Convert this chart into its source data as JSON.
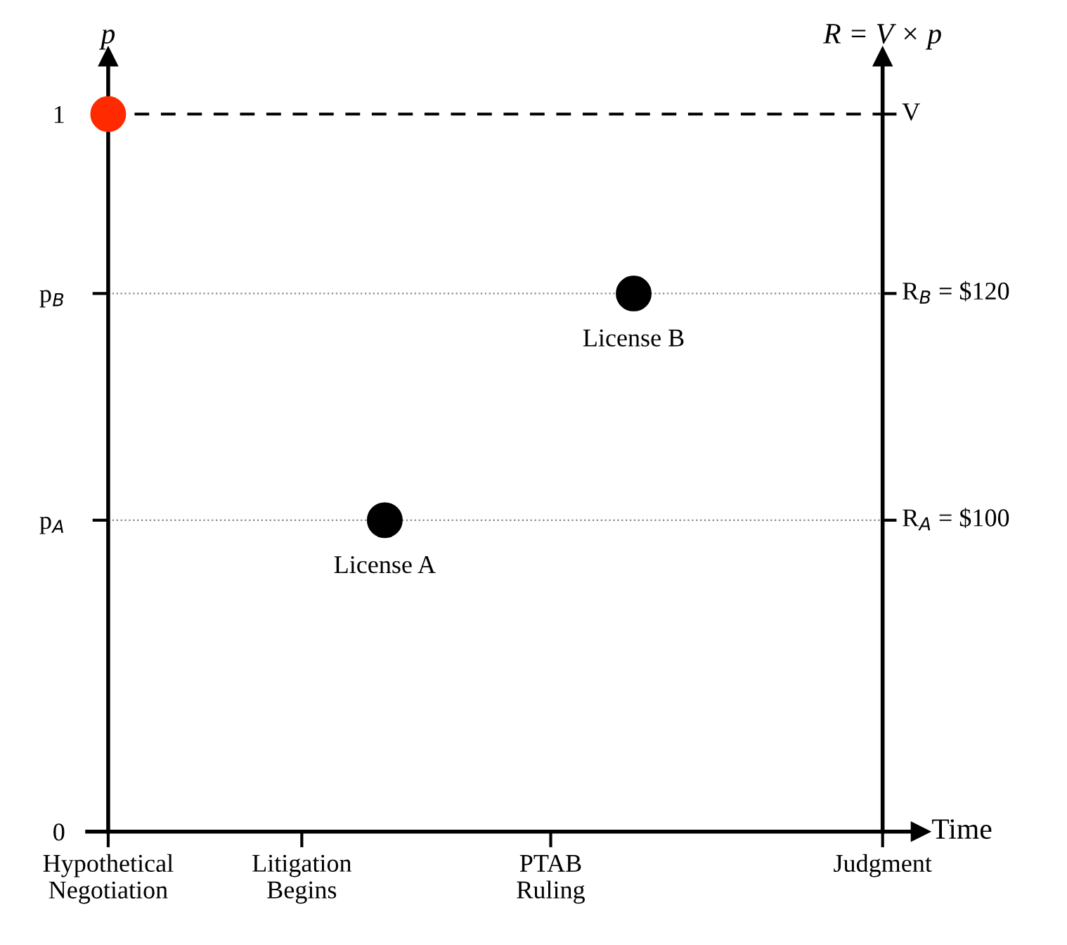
{
  "chart_data": {
    "type": "scatter",
    "xlabel": "Time",
    "ylabel": "p",
    "y2label": "R = V × p",
    "categories": [
      "Hypothetical\nNegotiation",
      null,
      null,
      null,
      null,
      null,
      null,
      "Litigation\nBegins",
      null,
      null,
      null,
      null,
      null,
      null,
      null,
      null,
      "PTAB\nRuling",
      null,
      null,
      null,
      null,
      null,
      null,
      null,
      null,
      null,
      null,
      null,
      "Judgment"
    ],
    "values": [
      1,
      null,
      null,
      null,
      null,
      null,
      null,
      null,
      null,
      null,
      0.434,
      null,
      null,
      null,
      null,
      null,
      null,
      null,
      null,
      0.75,
      null,
      null,
      null,
      null,
      null,
      null,
      null,
      null,
      null
    ],
    "colors": [
      "#ff2a00",
      null,
      null,
      null,
      null,
      null,
      null,
      null,
      null,
      null,
      "#000000",
      null,
      null,
      null,
      null,
      null,
      null,
      null,
      null,
      "#000000",
      null,
      null,
      null,
      null,
      null,
      null,
      null,
      null,
      null
    ],
    "ylim": [
      0,
      1.08
    ],
    "yticks": [
      0,
      {
        "value": 0.434,
        "label": "p$_{A}$"
      },
      {
        "value": 0.75,
        "label": "p$_{B}$"
      },
      1
    ],
    "ref_lines": [
      {
        "axis": "y",
        "value": 1,
        "line_style": "dashed",
        "color": "#000000"
      },
      {
        "axis": "y",
        "value": 0.75,
        "line_style": "dotted",
        "color": "#888888"
      },
      {
        "axis": "y",
        "value": 0.434,
        "line_style": "dotted",
        "color": "#888888"
      }
    ],
    "annotations": [
      {
        "text": "License A",
        "y": 0.434
      },
      {
        "text": "License B",
        "y": 0.75
      },
      {
        "text": "V",
        "x": "Judgment",
        "y": 1
      },
      {
        "text": "R$_{B}$ = $120",
        "x": "Judgment",
        "y": 0.75
      },
      {
        "text": "R$_{A}$ = $100",
        "x": "Judgment",
        "y": 0.434
      }
    ],
    "marker": "circle",
    "grid": false
  }
}
